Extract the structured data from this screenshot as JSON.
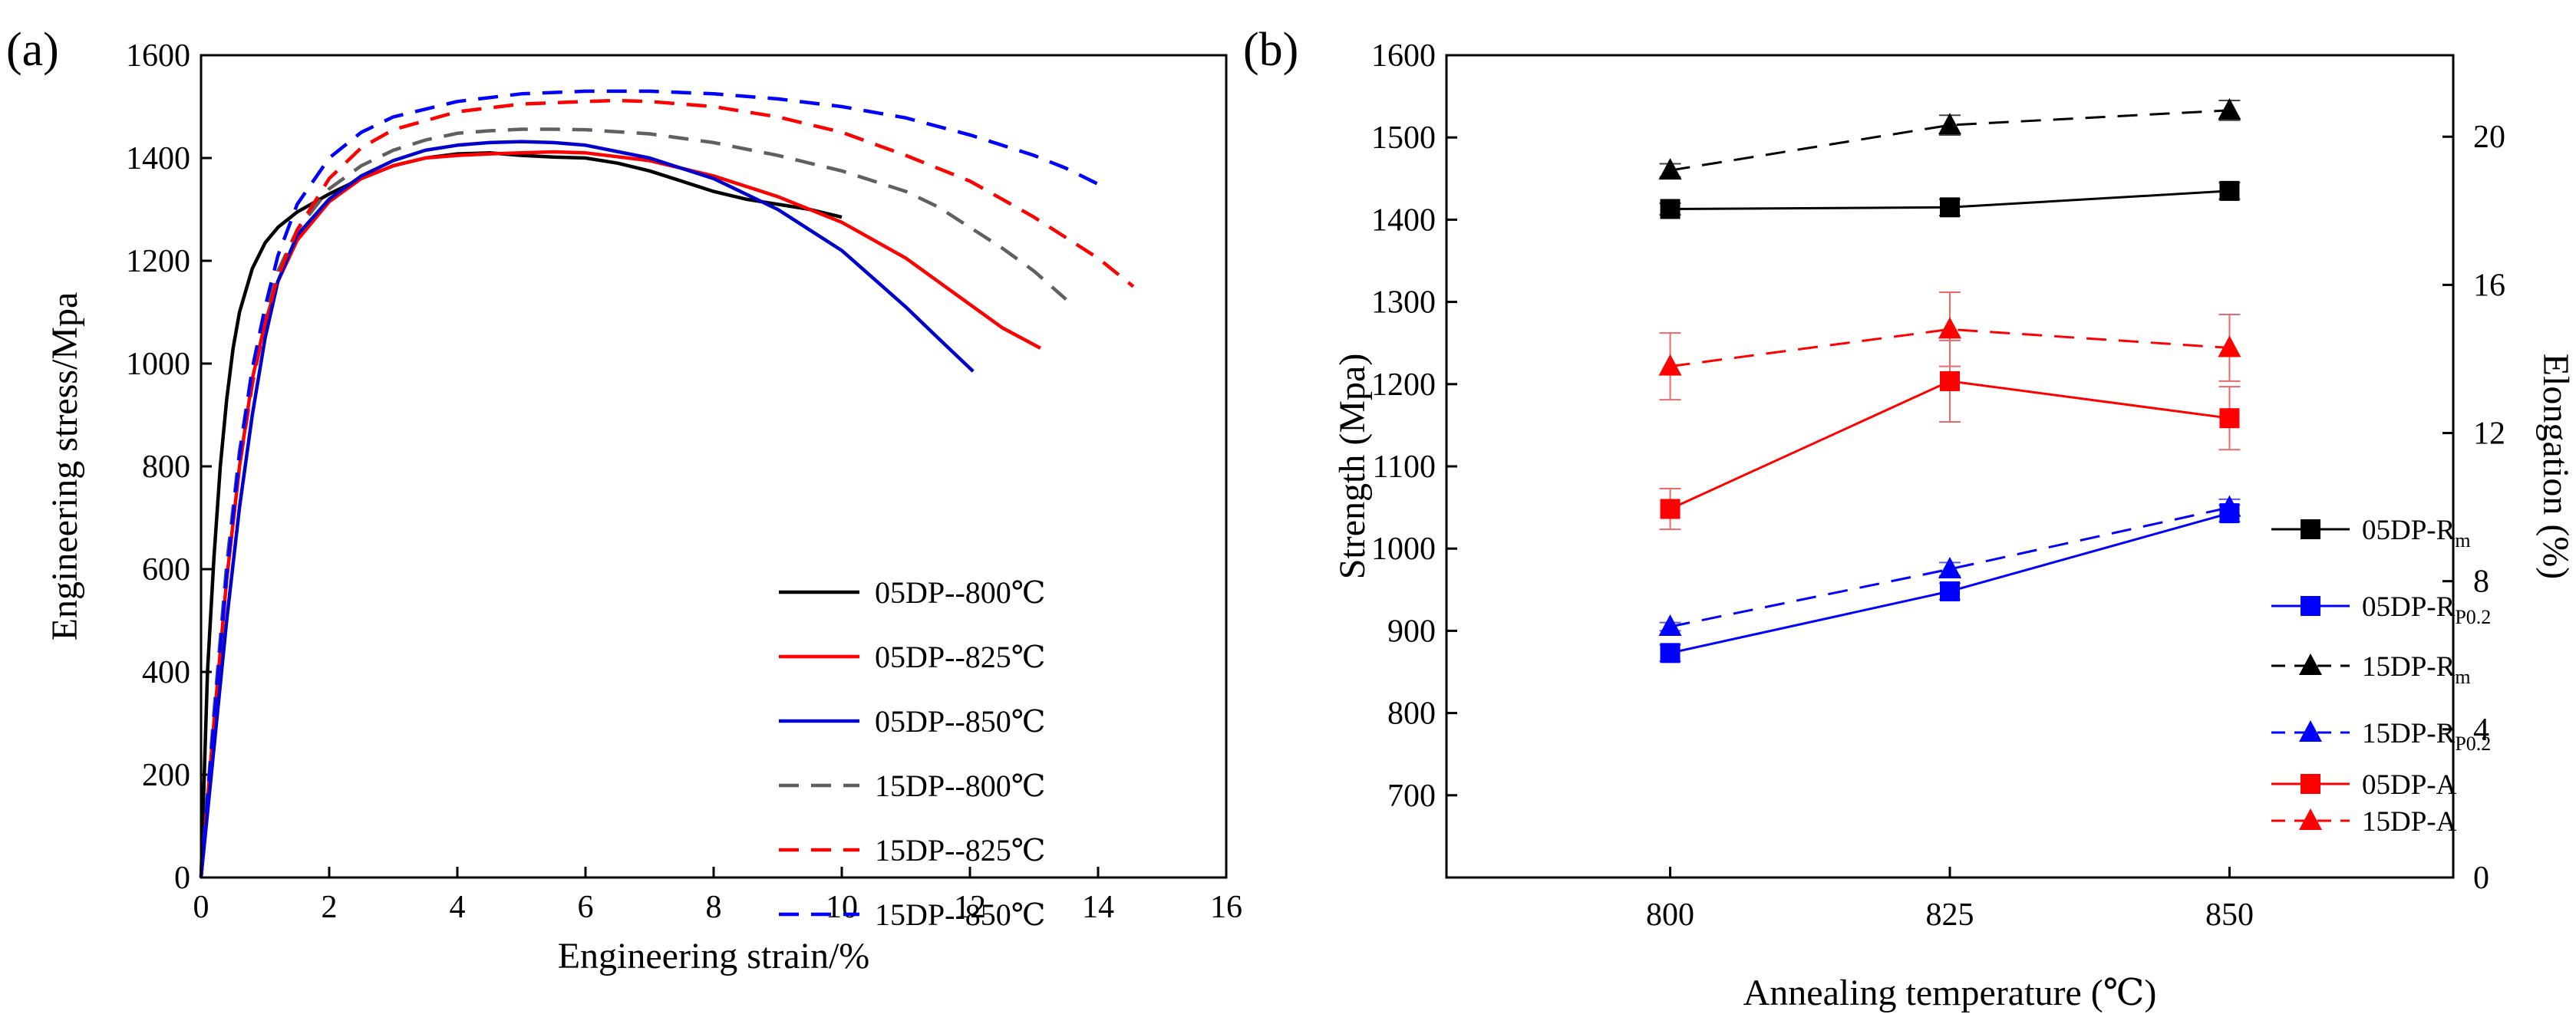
{
  "chart_data": [
    {
      "panel": "(a)",
      "type": "line",
      "xlabel": "Engineering strain/%",
      "ylabel": "Engineering stress/Mpa",
      "xlim": [
        0,
        16
      ],
      "ylim": [
        0,
        1600
      ],
      "xticks": [
        0,
        2,
        4,
        6,
        8,
        10,
        12,
        14,
        16
      ],
      "yticks": [
        0,
        200,
        400,
        600,
        800,
        1000,
        1200,
        1400,
        1600
      ],
      "legend_position": "bottom-right",
      "series": [
        {
          "name": "05DP--800℃",
          "color": "#000000",
          "dash": "solid",
          "x": [
            0,
            0.1,
            0.2,
            0.3,
            0.4,
            0.5,
            0.6,
            0.8,
            1.0,
            1.2,
            1.5,
            2.0,
            2.5,
            3.0,
            3.5,
            4.0,
            4.5,
            5.0,
            5.5,
            6.0,
            6.5,
            7.0,
            7.5,
            8.0,
            8.5,
            9.0,
            9.5,
            10.0
          ],
          "y": [
            0,
            400,
            620,
            800,
            930,
            1030,
            1100,
            1185,
            1235,
            1265,
            1295,
            1330,
            1360,
            1385,
            1400,
            1408,
            1410,
            1405,
            1402,
            1400,
            1390,
            1375,
            1355,
            1335,
            1320,
            1310,
            1300,
            1285
          ]
        },
        {
          "name": "05DP--825℃",
          "color": "#ff0000",
          "dash": "solid",
          "x": [
            0,
            0.2,
            0.4,
            0.6,
            0.8,
            1.0,
            1.2,
            1.5,
            2.0,
            2.5,
            3.0,
            3.5,
            4.0,
            4.5,
            5.0,
            5.5,
            6.0,
            7.0,
            8.0,
            9.0,
            10.0,
            10.5,
            11.0,
            11.5,
            12.0,
            12.5,
            13.1
          ],
          "y": [
            0,
            300,
            580,
            800,
            970,
            1080,
            1160,
            1240,
            1315,
            1360,
            1385,
            1400,
            1405,
            1408,
            1410,
            1412,
            1410,
            1395,
            1365,
            1325,
            1275,
            1240,
            1205,
            1160,
            1115,
            1070,
            1030
          ]
        },
        {
          "name": "05DP--850℃",
          "color": "#0000cc",
          "dash": "solid",
          "x": [
            0,
            0.2,
            0.4,
            0.6,
            0.8,
            1.0,
            1.2,
            1.5,
            2.0,
            2.5,
            3.0,
            3.5,
            4.0,
            4.5,
            5.0,
            5.5,
            6.0,
            7.0,
            8.0,
            9.0,
            9.5,
            10.0,
            10.5,
            11.0,
            11.5,
            12.05
          ],
          "y": [
            0,
            250,
            500,
            720,
            900,
            1050,
            1160,
            1250,
            1320,
            1365,
            1395,
            1415,
            1425,
            1430,
            1432,
            1430,
            1425,
            1400,
            1360,
            1300,
            1260,
            1220,
            1165,
            1110,
            1050,
            985
          ]
        },
        {
          "name": "15DP--800℃",
          "color": "#606060",
          "dash": "dashed",
          "x": [
            0,
            0.2,
            0.4,
            0.6,
            0.8,
            1.0,
            1.2,
            1.5,
            2.0,
            2.5,
            3.0,
            3.5,
            4.0,
            4.5,
            5.0,
            5.5,
            6.0,
            7.0,
            8.0,
            9.0,
            10.0,
            11.0,
            11.5,
            12.0,
            12.5,
            13.0,
            13.5
          ],
          "y": [
            0,
            320,
            610,
            830,
            990,
            1100,
            1180,
            1260,
            1340,
            1385,
            1415,
            1435,
            1448,
            1453,
            1456,
            1456,
            1455,
            1447,
            1430,
            1405,
            1375,
            1335,
            1305,
            1265,
            1225,
            1180,
            1125
          ]
        },
        {
          "name": "15DP--825℃",
          "color": "#ff0000",
          "dash": "dashed",
          "x": [
            0,
            0.2,
            0.4,
            0.6,
            0.8,
            1.0,
            1.2,
            1.5,
            2.0,
            2.5,
            3.0,
            4.0,
            5.0,
            6.0,
            6.5,
            7.0,
            8.0,
            9.0,
            10.0,
            11.0,
            12.0,
            12.5,
            13.0,
            13.5,
            14.0,
            14.55
          ],
          "y": [
            0,
            300,
            580,
            800,
            960,
            1080,
            1170,
            1260,
            1360,
            1420,
            1455,
            1490,
            1505,
            1510,
            1512,
            1510,
            1500,
            1480,
            1450,
            1405,
            1355,
            1320,
            1285,
            1245,
            1205,
            1150
          ]
        },
        {
          "name": "15DP--850℃",
          "color": "#0000ff",
          "dash": "dashed",
          "x": [
            0,
            0.2,
            0.4,
            0.6,
            0.8,
            1.0,
            1.2,
            1.5,
            2.0,
            2.5,
            3.0,
            4.0,
            5.0,
            6.0,
            7.0,
            8.0,
            9.0,
            10.0,
            11.0,
            12.0,
            13.0,
            13.5,
            14.15
          ],
          "y": [
            0,
            300,
            590,
            820,
            990,
            1110,
            1210,
            1310,
            1400,
            1450,
            1480,
            1510,
            1525,
            1530,
            1530,
            1525,
            1515,
            1500,
            1478,
            1445,
            1405,
            1380,
            1340
          ]
        }
      ]
    },
    {
      "panel": "(b)",
      "type": "line",
      "xlabel": "Annealing temperature (℃)",
      "ylabel": "Strength (Mpa)",
      "y2label": "Elongation (%)",
      "x": [
        800,
        825,
        850
      ],
      "xlim": [
        780,
        870
      ],
      "ylim": [
        600,
        1600
      ],
      "y2lim": [
        0,
        22.2
      ],
      "yticks": [
        700,
        800,
        900,
        1000,
        1100,
        1200,
        1300,
        1400,
        1500,
        1600
      ],
      "y2ticks": [
        0,
        4,
        8,
        12,
        16,
        20
      ],
      "legend_position": "right",
      "series": [
        {
          "name": "05DP-R",
          "subscript": "m",
          "axis": "left",
          "color": "#000000",
          "dash": "solid",
          "marker": "square",
          "values": [
            1413,
            1415,
            1435
          ],
          "errors": [
            7,
            10,
            10
          ]
        },
        {
          "name": "05DP-R",
          "subscript": "P0.2",
          "axis": "left",
          "color": "#0000ff",
          "dash": "solid",
          "marker": "square",
          "values": [
            873,
            948,
            1043
          ],
          "errors": [
            10,
            10,
            10
          ]
        },
        {
          "name": "15DP-R",
          "subscript": "m",
          "axis": "left",
          "color": "#000000",
          "dash": "dashed",
          "marker": "triangle",
          "values": [
            1460,
            1515,
            1533
          ],
          "errors": [
            8,
            12,
            12
          ]
        },
        {
          "name": "15DP-R",
          "subscript": "P0.2",
          "axis": "left",
          "color": "#0000ff",
          "dash": "dashed",
          "marker": "triangle",
          "values": [
            905,
            975,
            1050
          ],
          "errors": [
            5,
            8,
            10
          ]
        },
        {
          "name": "05DP-A",
          "subscript": "",
          "axis": "right",
          "color": "#ff0000",
          "dash": "solid",
          "marker": "square",
          "values": [
            9.95,
            13.4,
            12.4
          ],
          "errors": [
            0.55,
            1.1,
            0.85
          ]
        },
        {
          "name": "15DP-A",
          "subscript": "",
          "axis": "right",
          "color": "#ff0000",
          "dash": "dashed",
          "marker": "triangle",
          "values": [
            13.8,
            14.8,
            14.3
          ],
          "errors": [
            0.9,
            1.0,
            0.9
          ]
        }
      ]
    }
  ]
}
